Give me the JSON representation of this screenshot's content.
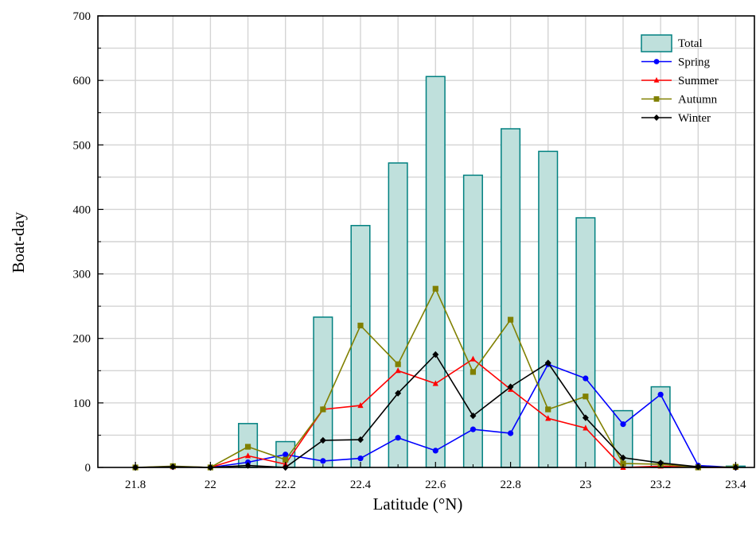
{
  "chart_data": {
    "type": "bar",
    "xlabel": "Latitude (°N)",
    "ylabel": "Boat-day",
    "xlim": [
      21.7,
      23.45
    ],
    "ylim": [
      0,
      700
    ],
    "x_ticks": [
      "21.8",
      "22",
      "22.2",
      "22.4",
      "22.6",
      "22.8",
      "23",
      "23.2",
      "23.4"
    ],
    "x_tick_values": [
      21.8,
      22.0,
      22.2,
      22.4,
      22.6,
      22.8,
      23.0,
      23.2,
      23.4
    ],
    "y_ticks": [
      "0",
      "100",
      "200",
      "300",
      "400",
      "500",
      "600",
      "700"
    ],
    "y_tick_values": [
      0,
      100,
      200,
      300,
      400,
      500,
      600,
      700
    ],
    "grid": true,
    "legend_position": "top-right",
    "x": [
      21.8,
      21.9,
      22.0,
      22.1,
      22.2,
      22.3,
      22.4,
      22.5,
      22.6,
      22.7,
      22.8,
      22.9,
      23.0,
      23.1,
      23.2,
      23.3,
      23.4
    ],
    "series": [
      {
        "name": "Total",
        "kind": "bar",
        "color": "#008080",
        "fill": "#bfe0dc",
        "values": [
          0,
          0,
          0,
          68,
          40,
          233,
          375,
          472,
          606,
          453,
          525,
          490,
          387,
          88,
          125,
          0,
          2
        ]
      },
      {
        "name": "Spring",
        "kind": "line",
        "color": "#0000ff",
        "marker": "circle",
        "values": [
          0,
          1,
          0,
          8,
          20,
          10,
          14,
          46,
          26,
          59,
          53,
          160,
          138,
          67,
          113,
          3,
          0
        ]
      },
      {
        "name": "Summer",
        "kind": "line",
        "color": "#ff0000",
        "marker": "triangle",
        "values": [
          0,
          1,
          0,
          18,
          5,
          90,
          96,
          150,
          130,
          168,
          121,
          76,
          61,
          0,
          2,
          0,
          0
        ]
      },
      {
        "name": "Autumn",
        "kind": "line",
        "color": "#808000",
        "marker": "square",
        "values": [
          0,
          2,
          0,
          32,
          12,
          90,
          220,
          160,
          277,
          148,
          229,
          90,
          110,
          6,
          5,
          0,
          1
        ]
      },
      {
        "name": "Winter",
        "kind": "line",
        "color": "#000000",
        "marker": "diamond",
        "values": [
          0,
          1,
          0,
          3,
          0,
          42,
          43,
          115,
          175,
          80,
          125,
          162,
          77,
          15,
          7,
          1,
          0
        ]
      }
    ]
  }
}
